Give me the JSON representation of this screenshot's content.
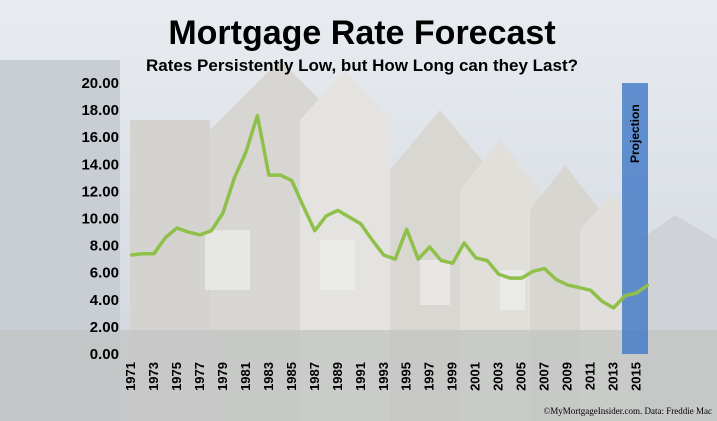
{
  "chart_data": {
    "type": "line",
    "title": "Mortgage Rate Forecast",
    "subtitle": "Rates Persistently  Low, but How Long can they Last?",
    "credit": "©MyMortgageInsider.com.  Data: Freddie  Mac",
    "projection_label": "Projection",
    "projection_range": [
      2014,
      2016
    ],
    "colors": {
      "line": "#8fc04a",
      "projection": "#3f78c8",
      "text": "#000000"
    },
    "ylim": [
      0,
      20
    ],
    "y_ticks": [
      "0.00",
      "2.00",
      "4.00",
      "6.00",
      "8.00",
      "10.00",
      "12.00",
      "14.00",
      "16.00",
      "18.00",
      "20.00"
    ],
    "x_ticks": [
      "1971",
      "1973",
      "1975",
      "1977",
      "1979",
      "1981",
      "1983",
      "1985",
      "1987",
      "1989",
      "1991",
      "1993",
      "1995",
      "1997",
      "1999",
      "2001",
      "2003",
      "2005",
      "2007",
      "2009",
      "2011",
      "2013",
      "2015"
    ],
    "series": [
      {
        "x": [
          1971,
          1972,
          1973,
          1974,
          1975,
          1976,
          1977,
          1978,
          1979,
          1980,
          1981,
          1982,
          1983,
          1984,
          1985,
          1986,
          1987,
          1988,
          1989,
          1990,
          1991,
          1992,
          1993,
          1994,
          1995,
          1996,
          1997,
          1998,
          1999,
          2000,
          2001,
          2002,
          2003,
          2004,
          2005,
          2006,
          2007,
          2008,
          2009,
          2010,
          2011,
          2012,
          2013,
          2014,
          2015,
          2016
        ],
        "values": [
          7.3,
          7.4,
          7.4,
          8.6,
          9.3,
          9.0,
          8.8,
          9.1,
          10.4,
          13.0,
          14.9,
          17.6,
          13.2,
          13.2,
          12.8,
          10.9,
          9.1,
          10.2,
          10.6,
          10.1,
          9.6,
          8.4,
          7.3,
          7.0,
          9.2,
          7.0,
          7.9,
          6.9,
          6.7,
          8.2,
          7.1,
          6.9,
          5.9,
          5.6,
          5.6,
          6.1,
          6.3,
          5.5,
          5.1,
          4.9,
          4.7,
          3.9,
          3.4,
          4.3,
          4.5,
          5.1
        ]
      }
    ]
  }
}
